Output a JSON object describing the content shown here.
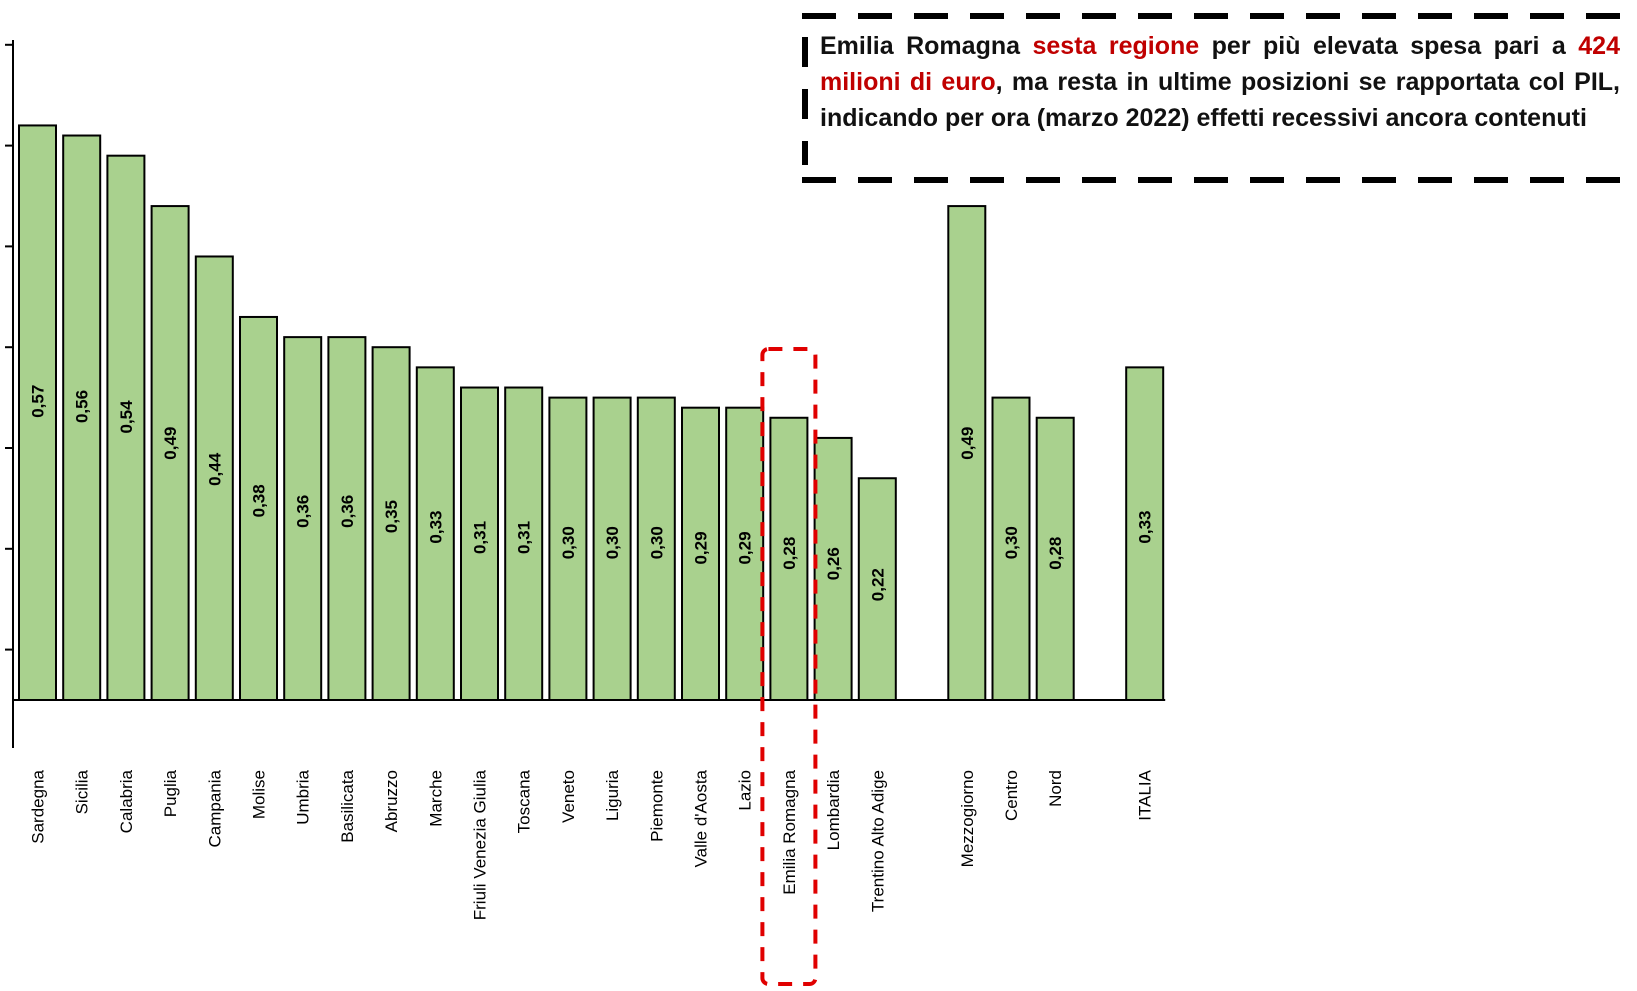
{
  "chart_data": {
    "type": "bar",
    "categories": [
      "Sardegna",
      "Sicilia",
      "Calabria",
      "Puglia",
      "Campania",
      "Molise",
      "Umbria",
      "Basilicata",
      "Abruzzo",
      "Marche",
      "Friuli Venezia Giulia",
      "Toscana",
      "Veneto",
      "Liguria",
      "Piemonte",
      "Valle d'Aosta",
      "Lazio",
      "Emilia Romagna",
      "Lombardia",
      "Trentino Alto Adige",
      "Mezzogiorno",
      "Centro",
      "Nord",
      "ITALIA"
    ],
    "values": [
      0.57,
      0.56,
      0.54,
      0.49,
      0.44,
      0.38,
      0.36,
      0.36,
      0.35,
      0.33,
      0.31,
      0.31,
      0.3,
      0.3,
      0.3,
      0.29,
      0.29,
      0.28,
      0.26,
      0.22,
      0.49,
      0.3,
      0.28,
      0.33
    ],
    "value_labels": [
      "0,57",
      "0,56",
      "0,54",
      "0,49",
      "0,44",
      "0,38",
      "0,36",
      "0,36",
      "0,35",
      "0,33",
      "0,31",
      "0,31",
      "0,30",
      "0,30",
      "0,30",
      "0,29",
      "0,29",
      "0,28",
      "0,26",
      "0,22",
      "0,49",
      "0,30",
      "0,28",
      "0,33"
    ],
    "groups": [
      20,
      3,
      1
    ],
    "highlighted_category": "Emilia Romagna",
    "bar_color": "#a9d18e",
    "highlight_color": "#e00000",
    "title": "",
    "xlabel": "",
    "ylabel": "",
    "ylim": [
      -0.05,
      0.65
    ]
  },
  "note": {
    "part1": "Emilia Romagna ",
    "part2": "sesta regione",
    "part3": " per più elevata spesa pari a ",
    "part4": "424 milioni di euro",
    "part5": ", ma resta in ultime posizioni se rapportata col PIL, indicando per ora (marzo 2022) effetti recessivi ancora contenuti",
    "highlight_color": "#c00000"
  }
}
